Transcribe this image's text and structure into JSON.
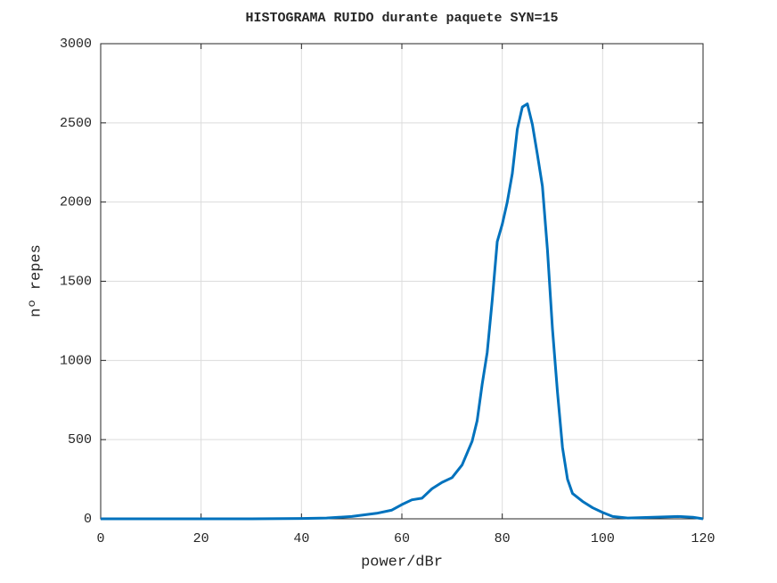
{
  "chart_data": {
    "type": "line",
    "title": "HISTOGRAMA RUIDO durante paquete SYN=15",
    "xlabel": "power/dBr",
    "ylabel": "nº repes",
    "xlim": [
      0,
      120
    ],
    "ylim": [
      0,
      3000
    ],
    "xticks": [
      0,
      20,
      40,
      60,
      80,
      100,
      120
    ],
    "yticks": [
      0,
      500,
      1000,
      1500,
      2000,
      2500,
      3000
    ],
    "grid": true,
    "series": [
      {
        "color": "#0072bd",
        "x": [
          0,
          10,
          20,
          30,
          40,
          45,
          50,
          55,
          58,
          60,
          62,
          64,
          66,
          68,
          70,
          72,
          74,
          75,
          76,
          77,
          78,
          79,
          80,
          81,
          82,
          83,
          84,
          85,
          86,
          87,
          88,
          89,
          90,
          91,
          92,
          93,
          94,
          96,
          98,
          100,
          102,
          105,
          110,
          115,
          118,
          120
        ],
        "values": [
          0,
          0,
          0,
          0,
          2,
          5,
          15,
          35,
          55,
          90,
          120,
          130,
          190,
          230,
          260,
          340,
          490,
          620,
          850,
          1050,
          1380,
          1750,
          1860,
          2000,
          2180,
          2460,
          2600,
          2620,
          2490,
          2300,
          2100,
          1700,
          1200,
          800,
          450,
          250,
          160,
          110,
          70,
          40,
          15,
          5,
          10,
          15,
          10,
          0
        ]
      }
    ]
  }
}
